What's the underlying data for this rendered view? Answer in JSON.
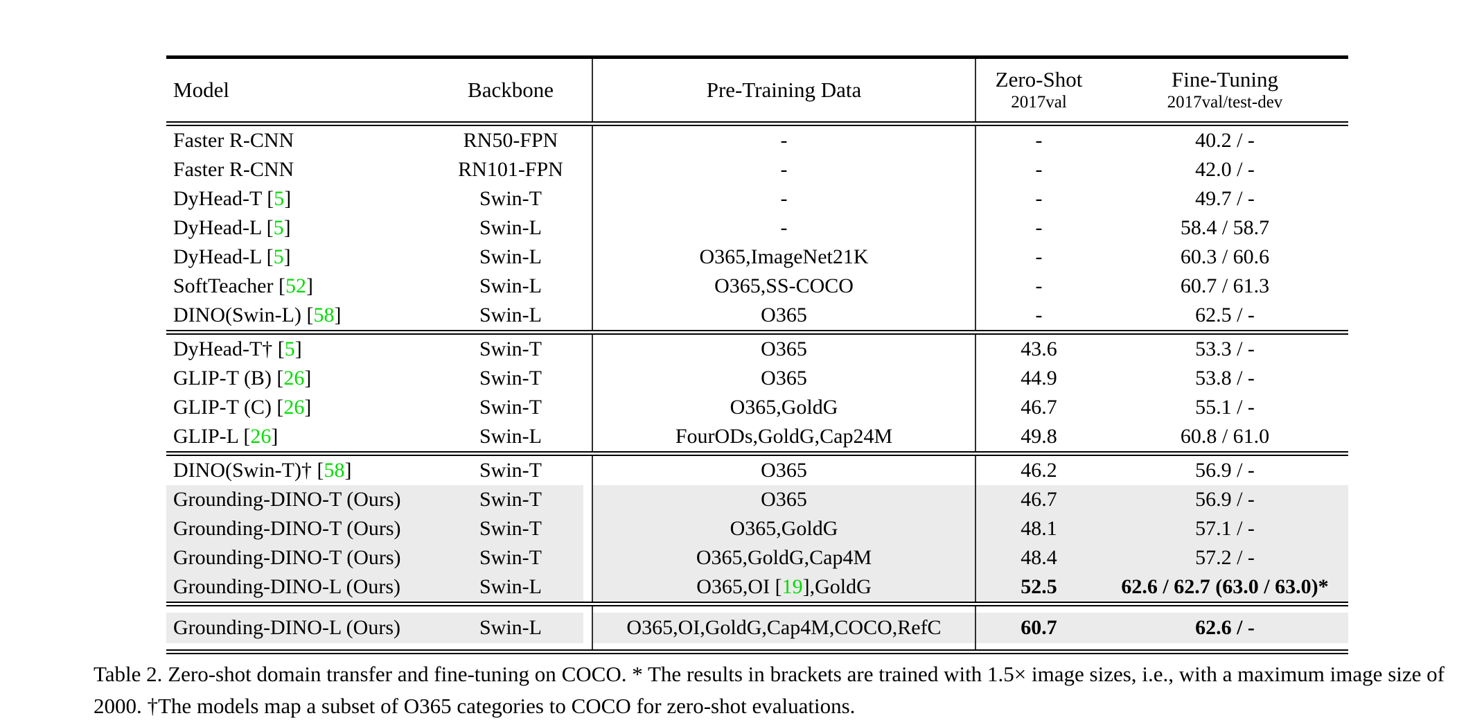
{
  "colors": {
    "citation_green": "#00dc00",
    "row_highlight": "#ebebeb",
    "rule_black": "#000000"
  },
  "table": {
    "column_keys": [
      "model",
      "backbone",
      "pretrain",
      "zeroshot",
      "finetune"
    ],
    "columns": [
      {
        "label": "Model",
        "sub": ""
      },
      {
        "label": "Backbone",
        "sub": ""
      },
      {
        "label": "Pre-Training Data",
        "sub": ""
      },
      {
        "label": "Zero-Shot",
        "sub": "2017val"
      },
      {
        "label": "Fine-Tuning",
        "sub": "2017val/test-dev"
      }
    ],
    "blocks": [
      {
        "rows": [
          {
            "model": "Faster R-CNN",
            "backbone": "RN50-FPN",
            "pretrain": "-",
            "zeroshot": "-",
            "finetune": "40.2 / -"
          },
          {
            "model": "Faster R-CNN",
            "backbone": "RN101-FPN",
            "pretrain": "-",
            "zeroshot": "-",
            "finetune": "42.0 / -"
          },
          {
            "model": "DyHead-T [5]",
            "backbone": "Swin-T",
            "pretrain": "-",
            "zeroshot": "-",
            "finetune": "49.7 / -"
          },
          {
            "model": "DyHead-L [5]",
            "backbone": "Swin-L",
            "pretrain": "-",
            "zeroshot": "-",
            "finetune": "58.4 / 58.7"
          },
          {
            "model": "DyHead-L [5]",
            "backbone": "Swin-L",
            "pretrain": "O365,ImageNet21K",
            "zeroshot": "-",
            "finetune": "60.3 / 60.6"
          },
          {
            "model": "SoftTeacher [52]",
            "backbone": "Swin-L",
            "pretrain": "O365,SS-COCO",
            "zeroshot": "-",
            "finetune": "60.7 / 61.3"
          },
          {
            "model": "DINO(Swin-L) [58]",
            "backbone": "Swin-L",
            "pretrain": "O365",
            "zeroshot": "-",
            "finetune": "62.5 / -"
          }
        ]
      },
      {
        "rows": [
          {
            "model": "DyHead-T† [5]",
            "backbone": "Swin-T",
            "pretrain": "O365",
            "zeroshot": "43.6",
            "finetune": "53.3 / -"
          },
          {
            "model": "GLIP-T (B) [26]",
            "backbone": "Swin-T",
            "pretrain": "O365",
            "zeroshot": "44.9",
            "finetune": "53.8 / -"
          },
          {
            "model": "GLIP-T (C) [26]",
            "backbone": "Swin-T",
            "pretrain": "O365,GoldG",
            "zeroshot": "46.7",
            "finetune": "55.1 / -"
          },
          {
            "model": "GLIP-L [26]",
            "backbone": "Swin-L",
            "pretrain": "FourODs,GoldG,Cap24M",
            "zeroshot": "49.8",
            "finetune": "60.8 / 61.0"
          }
        ]
      },
      {
        "rows": [
          {
            "model": "DINO(Swin-T)† [58]",
            "backbone": "Swin-T",
            "pretrain": "O365",
            "zeroshot": "46.2",
            "finetune": "56.9 / -"
          },
          {
            "model": "Grounding-DINO-T (Ours)",
            "backbone": "Swin-T",
            "pretrain": "O365",
            "zeroshot": "46.7",
            "finetune": "56.9 / -",
            "gray": true
          },
          {
            "model": "Grounding-DINO-T (Ours)",
            "backbone": "Swin-T",
            "pretrain": "O365,GoldG",
            "zeroshot": "48.1",
            "finetune": "57.1 / -",
            "gray": true
          },
          {
            "model": "Grounding-DINO-T (Ours)",
            "backbone": "Swin-T",
            "pretrain": "O365,GoldG,Cap4M",
            "zeroshot": "48.4",
            "finetune": "57.2 / -",
            "gray": true
          },
          {
            "model": "Grounding-DINO-L (Ours)",
            "backbone": "Swin-L",
            "pretrain": "O365,OI [19],GoldG",
            "zeroshot": "52.5",
            "finetune": "62.6 / 62.7 (63.0 / 63.0)*",
            "gray": true,
            "bold": [
              "zeroshot",
              "finetune"
            ]
          }
        ]
      },
      {
        "rows": [
          {
            "model": "Grounding-DINO-L (Ours)",
            "backbone": "Swin-L",
            "pretrain": "O365,OI,GoldG,Cap4M,COCO,RefC",
            "zeroshot": "60.7",
            "finetune": "62.6 / -",
            "gray": true,
            "bold": [
              "zeroshot",
              "finetune"
            ]
          }
        ]
      }
    ]
  },
  "caption": "Table 2.  Zero-shot domain transfer and fine-tuning on COCO. * The results in brackets are trained with 1.5× image sizes, i.e., with a maximum image size of 2000. †The models map a subset of O365 categories to COCO for zero-shot evaluations."
}
